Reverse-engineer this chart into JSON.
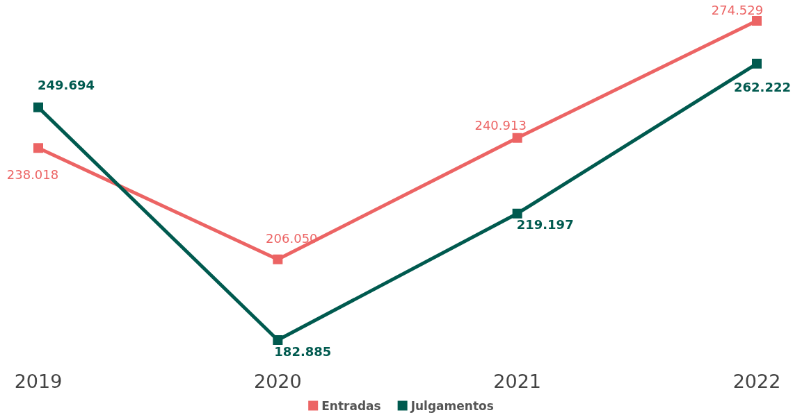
{
  "chart_data": {
    "type": "line",
    "categories": [
      "2019",
      "2020",
      "2021",
      "2022"
    ],
    "series": [
      {
        "name": "Entradas",
        "color": "#ec6464",
        "values": [
          238018,
          206050,
          240913,
          274529
        ],
        "value_labels": [
          "238.018",
          "206.050",
          "240.913",
          "274.529"
        ]
      },
      {
        "name": "Julgamentos",
        "color": "#005a4f",
        "values": [
          249694,
          182885,
          219197,
          262222
        ],
        "value_labels": [
          "249.694",
          "182.885",
          "219.197",
          "262.222"
        ]
      }
    ],
    "tick_labels": "x",
    "legend": "bottom",
    "marker": "square",
    "line_style": "solid",
    "grid": false
  }
}
